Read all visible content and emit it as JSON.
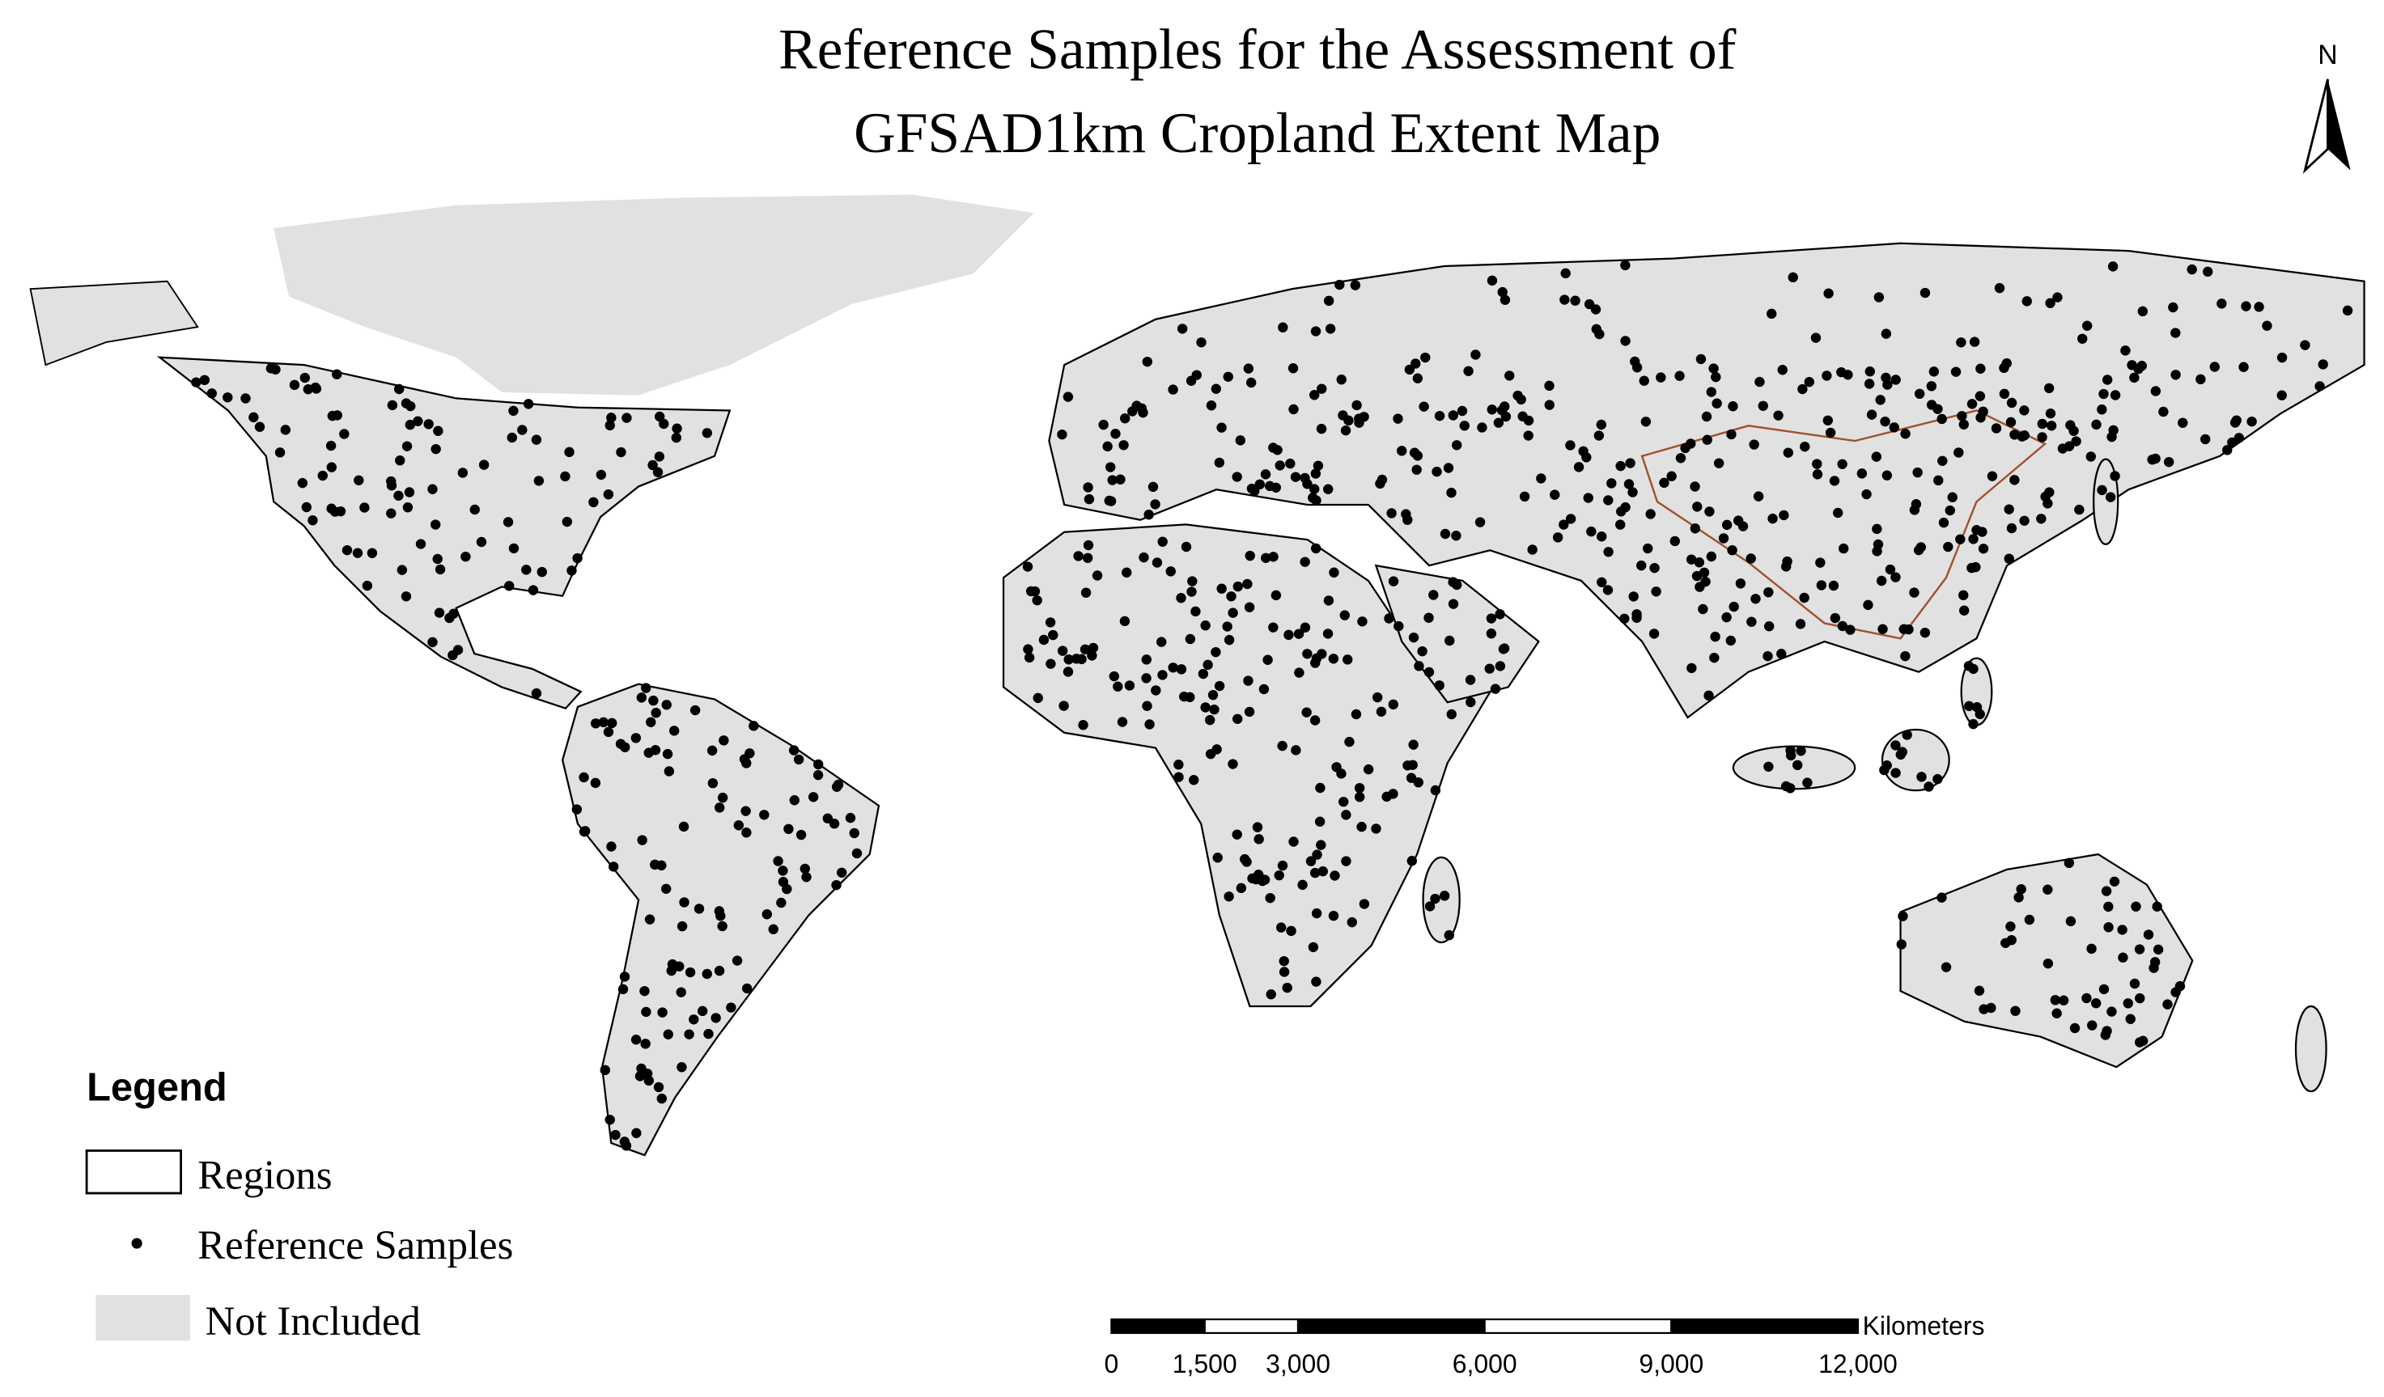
{
  "title": [
    "Reference Samples for the Assessment of",
    "GFSAD1km Cropland Extent Map"
  ],
  "north_label": "N",
  "legend": {
    "title": "Legend",
    "items": [
      "Regions",
      "Reference Samples",
      "Not Included"
    ]
  },
  "scale_bar": {
    "unit": "Kilometers",
    "ticks": [
      {
        "value": 0,
        "label": "0"
      },
      {
        "value": 1500,
        "label": "1,500"
      },
      {
        "value": 3000,
        "label": "3,000"
      },
      {
        "value": 6000,
        "label": "6,000"
      },
      {
        "value": 9000,
        "label": "9,000"
      },
      {
        "value": 12000,
        "label": "12,000"
      }
    ]
  }
}
